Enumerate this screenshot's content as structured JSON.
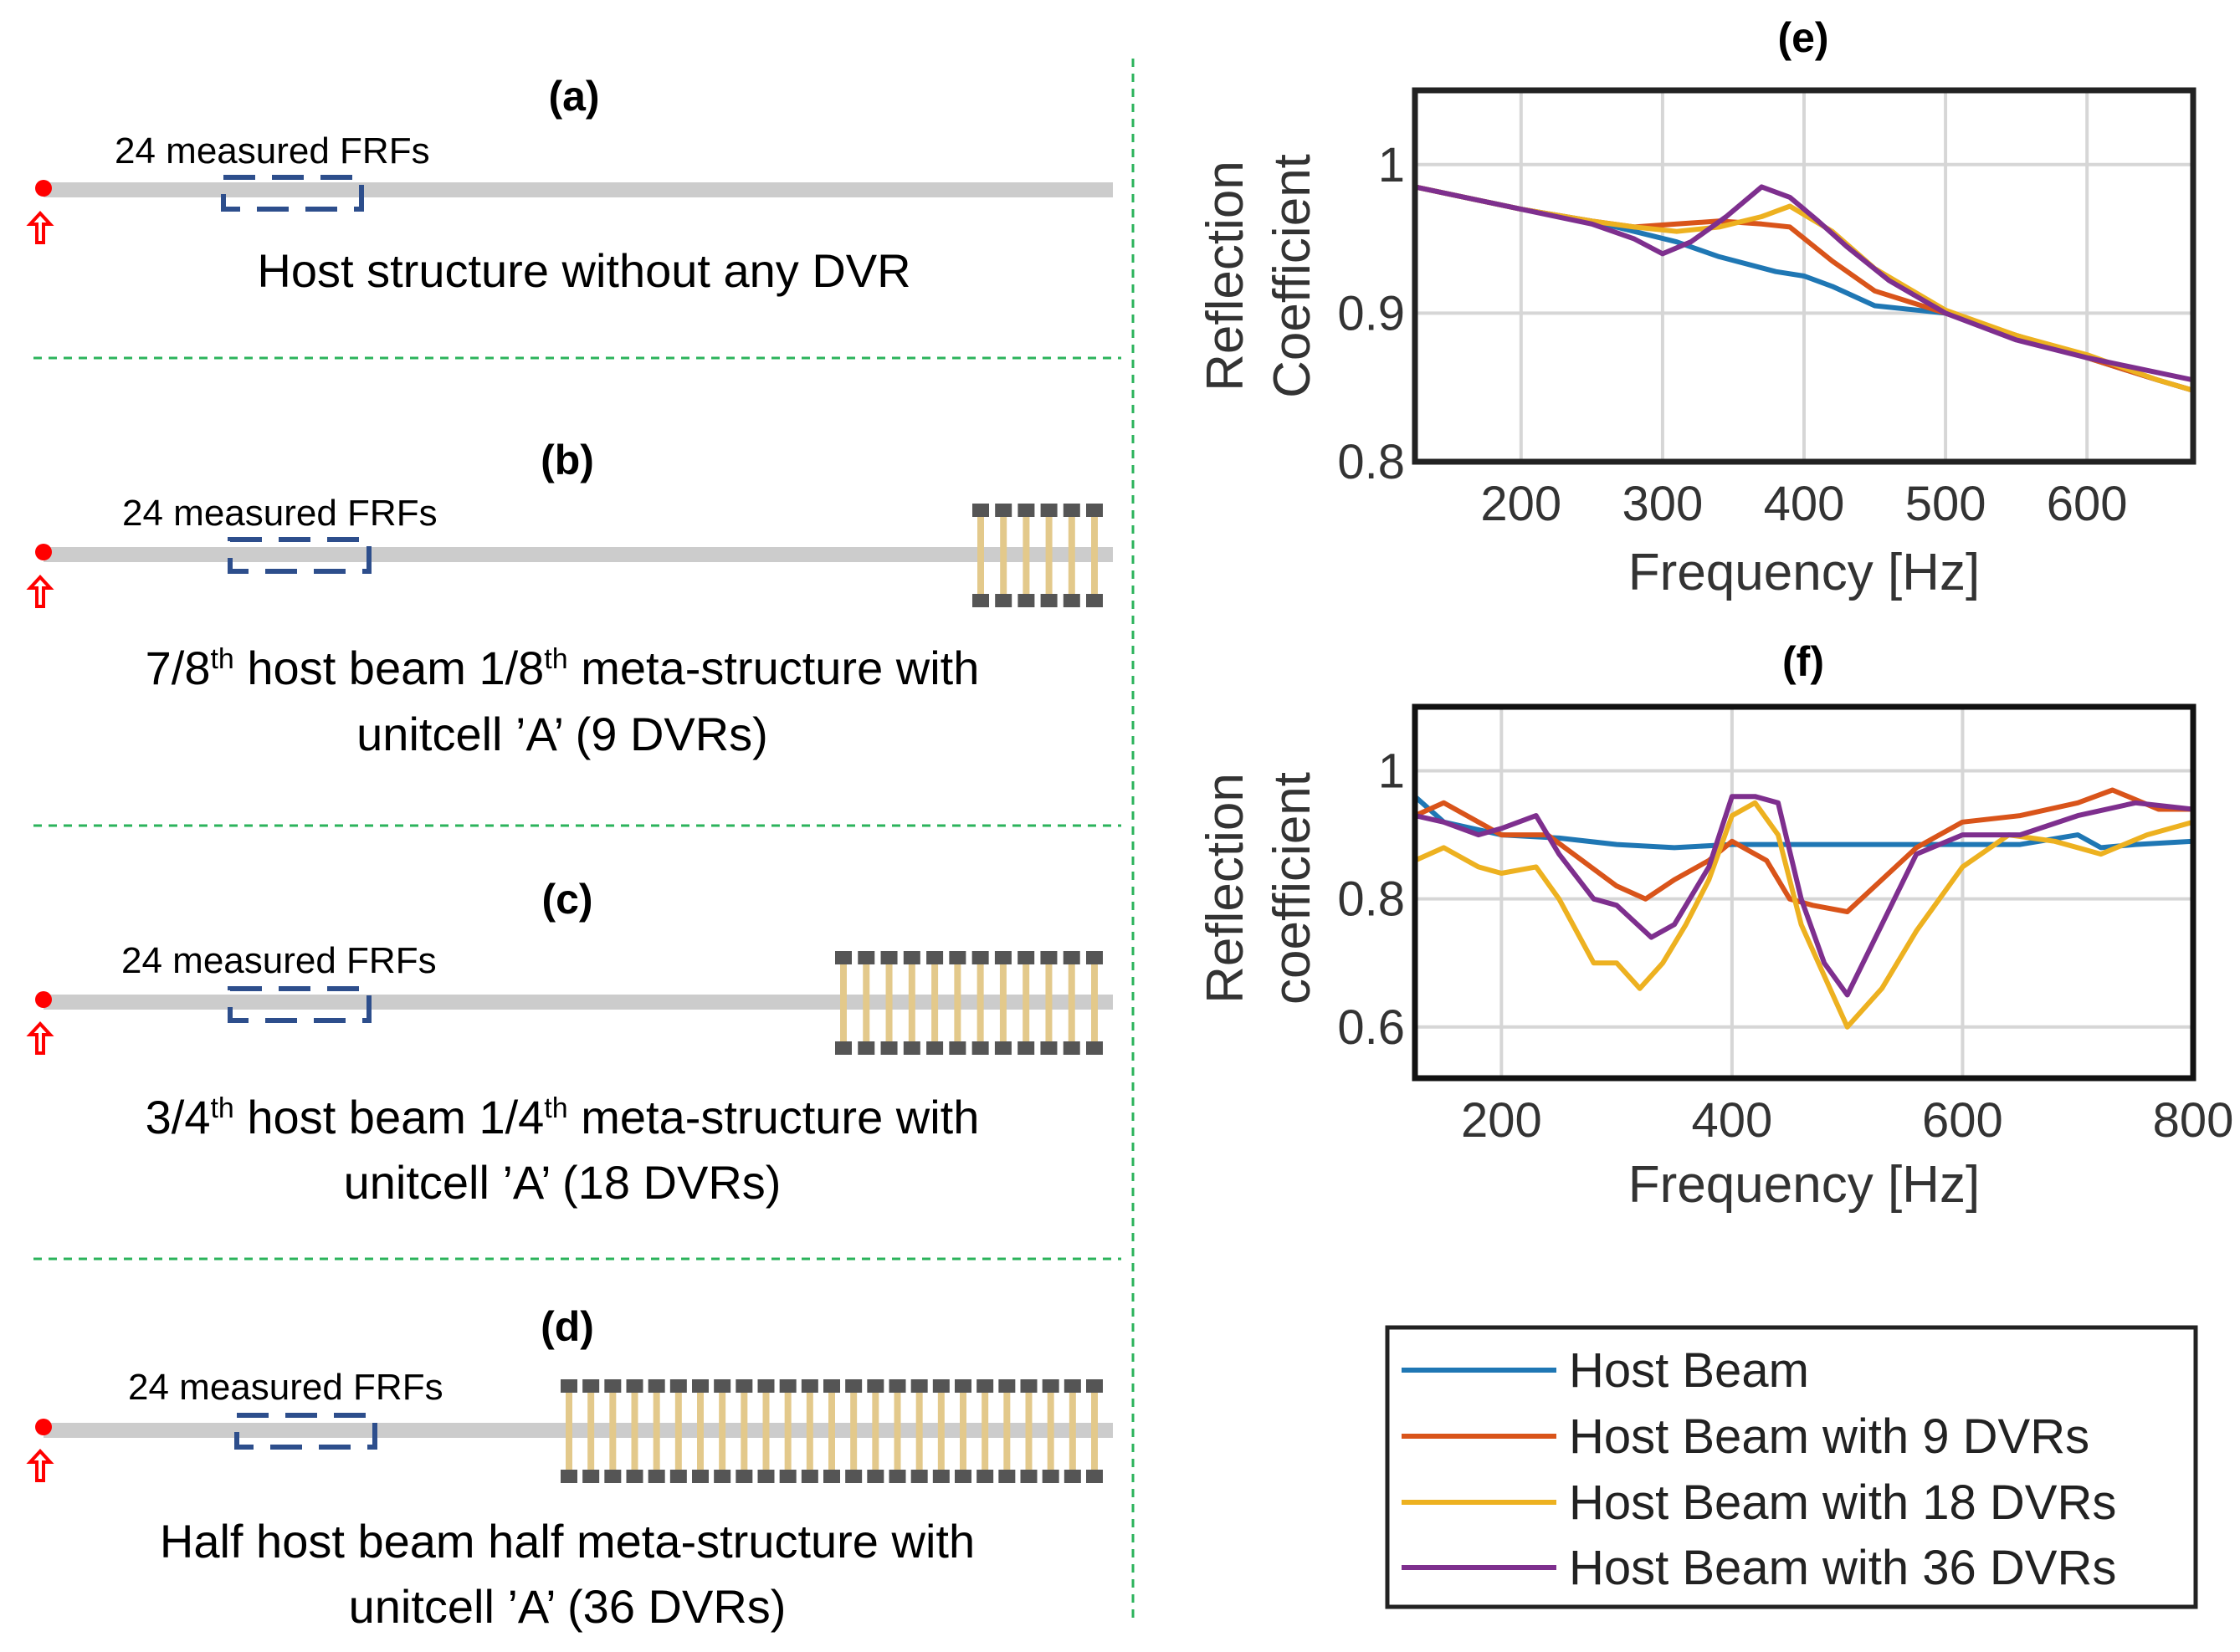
{
  "colors": {
    "host": "#1f77b4",
    "dvr9": "#d9541a",
    "dvr18": "#edb120",
    "dvr36": "#7e2f8e",
    "beam": "#cccccc",
    "frf_box": "#2d4e8c",
    "divider": "#2bb35b",
    "excitation": "#ff0000",
    "resonator_stem": "#e3c98b",
    "resonator_mass": "#555555",
    "grid": "#d6d6d6"
  },
  "schematics": [
    {
      "label": "(a)",
      "frf_label": "24 measured FRFs",
      "caption_lines": [
        "Host structure without any DVR"
      ],
      "dvrs_text": ""
    },
    {
      "label": "(b)",
      "frf_label": "24 measured FRFs",
      "caption_pre": "7/8",
      "caption_sup1": "th",
      "caption_mid": " host beam 1/8",
      "caption_sup2": "th",
      "caption_post": " meta-structure with",
      "caption_line2": "unitcell ’A’ (9 DVRs)"
    },
    {
      "label": "(c)",
      "frf_label": "24 measured FRFs",
      "caption_pre": "3/4",
      "caption_sup1": "th",
      "caption_mid": " host beam 1/4",
      "caption_sup2": "th",
      "caption_post": " meta-structure with",
      "caption_line2": "unitcell ’A’ (18 DVRs)"
    },
    {
      "label": "(d)",
      "frf_label": "24 measured FRFs",
      "caption_line1": "Half host beam half meta-structure with",
      "caption_line2": "unitcell ’A’ (36 DVRs)"
    }
  ],
  "chart_data": [
    {
      "id": "e",
      "type": "line",
      "title": "(e)",
      "xlabel": "Frequency [Hz]",
      "ylabel_line1": "Reflection",
      "ylabel_line2": "Coefficient",
      "xlim": [
        125,
        675
      ],
      "ylim": [
        0.8,
        1.05
      ],
      "xticks": [
        200,
        300,
        400,
        500,
        600
      ],
      "yticks": [
        0.8,
        0.9,
        1.0
      ],
      "ytick_labels": [
        "0.8",
        "0.9",
        "1"
      ],
      "grid": true,
      "series": [
        {
          "name": "Host Beam",
          "x": [
            125,
            200,
            250,
            280,
            310,
            340,
            380,
            400,
            420,
            450,
            500,
            550,
            600,
            650,
            675
          ],
          "y": [
            0.985,
            0.97,
            0.962,
            0.955,
            0.948,
            0.938,
            0.928,
            0.925,
            0.918,
            0.905,
            0.9,
            0.885,
            0.87,
            0.855,
            0.848
          ]
        },
        {
          "name": "Host Beam with 9 DVRs",
          "x": [
            125,
            200,
            250,
            280,
            310,
            340,
            370,
            390,
            420,
            450,
            500,
            550,
            600,
            650,
            675
          ],
          "y": [
            0.985,
            0.97,
            0.962,
            0.958,
            0.96,
            0.962,
            0.96,
            0.958,
            0.935,
            0.915,
            0.9,
            0.885,
            0.87,
            0.855,
            0.848
          ]
        },
        {
          "name": "Host Beam with 18 DVRs",
          "x": [
            125,
            200,
            250,
            280,
            310,
            340,
            370,
            390,
            420,
            450,
            500,
            550,
            600,
            650,
            675
          ],
          "y": [
            0.985,
            0.97,
            0.962,
            0.958,
            0.955,
            0.958,
            0.965,
            0.972,
            0.955,
            0.93,
            0.902,
            0.885,
            0.872,
            0.855,
            0.848
          ]
        },
        {
          "name": "Host Beam with 36 DVRs",
          "x": [
            125,
            200,
            250,
            280,
            300,
            320,
            345,
            370,
            390,
            410,
            430,
            460,
            500,
            550,
            600,
            650,
            675
          ],
          "y": [
            0.985,
            0.97,
            0.96,
            0.95,
            0.94,
            0.948,
            0.965,
            0.985,
            0.978,
            0.962,
            0.945,
            0.922,
            0.9,
            0.882,
            0.87,
            0.86,
            0.855
          ]
        }
      ]
    },
    {
      "id": "f",
      "type": "line",
      "title": "(f)",
      "xlabel": "Frequency [Hz]",
      "ylabel_line1": "Reflection",
      "ylabel_line2": "coefficient",
      "xlim": [
        125,
        800
      ],
      "ylim": [
        0.52,
        1.1
      ],
      "xticks": [
        200,
        400,
        600,
        800
      ],
      "yticks": [
        0.6,
        0.8,
        1.0
      ],
      "ytick_labels": [
        "0.6",
        "0.8",
        "1"
      ],
      "grid": true,
      "series": [
        {
          "name": "Host Beam",
          "x": [
            125,
            150,
            200,
            250,
            300,
            350,
            400,
            450,
            500,
            550,
            600,
            650,
            700,
            720,
            750,
            800
          ],
          "y": [
            0.96,
            0.92,
            0.9,
            0.895,
            0.885,
            0.88,
            0.885,
            0.885,
            0.885,
            0.885,
            0.885,
            0.885,
            0.9,
            0.88,
            0.885,
            0.89
          ]
        },
        {
          "name": "Host Beam with 9 DVRs",
          "x": [
            125,
            150,
            200,
            240,
            270,
            300,
            325,
            350,
            380,
            400,
            430,
            450,
            470,
            500,
            530,
            560,
            600,
            650,
            700,
            730,
            770,
            800
          ],
          "y": [
            0.93,
            0.95,
            0.9,
            0.9,
            0.86,
            0.82,
            0.8,
            0.83,
            0.86,
            0.89,
            0.86,
            0.8,
            0.79,
            0.78,
            0.83,
            0.88,
            0.92,
            0.93,
            0.95,
            0.97,
            0.94,
            0.94
          ]
        },
        {
          "name": "Host Beam with 18 DVRs",
          "x": [
            125,
            150,
            180,
            200,
            230,
            250,
            280,
            300,
            320,
            340,
            360,
            380,
            400,
            420,
            440,
            460,
            480,
            500,
            530,
            560,
            600,
            640,
            680,
            720,
            760,
            800
          ],
          "y": [
            0.86,
            0.88,
            0.85,
            0.84,
            0.85,
            0.8,
            0.7,
            0.7,
            0.66,
            0.7,
            0.76,
            0.83,
            0.93,
            0.95,
            0.9,
            0.76,
            0.68,
            0.6,
            0.66,
            0.75,
            0.85,
            0.9,
            0.89,
            0.87,
            0.9,
            0.92
          ]
        },
        {
          "name": "Host Beam with 36 DVRs",
          "x": [
            125,
            150,
            180,
            200,
            230,
            250,
            280,
            300,
            330,
            350,
            380,
            400,
            420,
            440,
            460,
            480,
            500,
            530,
            560,
            600,
            650,
            700,
            750,
            800
          ],
          "y": [
            0.93,
            0.92,
            0.9,
            0.91,
            0.93,
            0.87,
            0.8,
            0.79,
            0.74,
            0.76,
            0.85,
            0.96,
            0.96,
            0.95,
            0.8,
            0.7,
            0.65,
            0.76,
            0.87,
            0.9,
            0.9,
            0.93,
            0.95,
            0.94
          ]
        }
      ]
    }
  ],
  "legend": {
    "entries": [
      "Host Beam",
      "Host Beam with 9 DVRs",
      "Host Beam with 18 DVRs",
      "Host Beam with 36 DVRs"
    ]
  }
}
